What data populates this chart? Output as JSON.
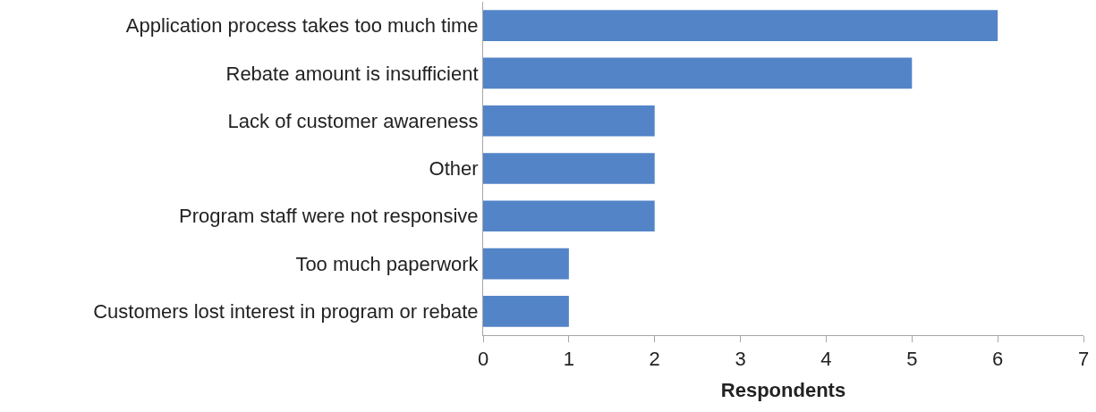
{
  "chart_data": {
    "type": "bar",
    "orientation": "horizontal",
    "xlabel": "Respondents",
    "categories": [
      "Application process takes too much time",
      "Rebate amount is insufficient",
      "Lack of customer awareness",
      "Other",
      "Program staff were not responsive",
      "Too much paperwork",
      "Customers lost interest in program or rebate"
    ],
    "values": [
      6,
      5,
      2,
      2,
      2,
      1,
      1
    ],
    "color": "#5384c8",
    "xlim": [
      0,
      7
    ],
    "xticks": [
      0,
      1,
      2,
      3,
      4,
      5,
      6,
      7
    ]
  }
}
